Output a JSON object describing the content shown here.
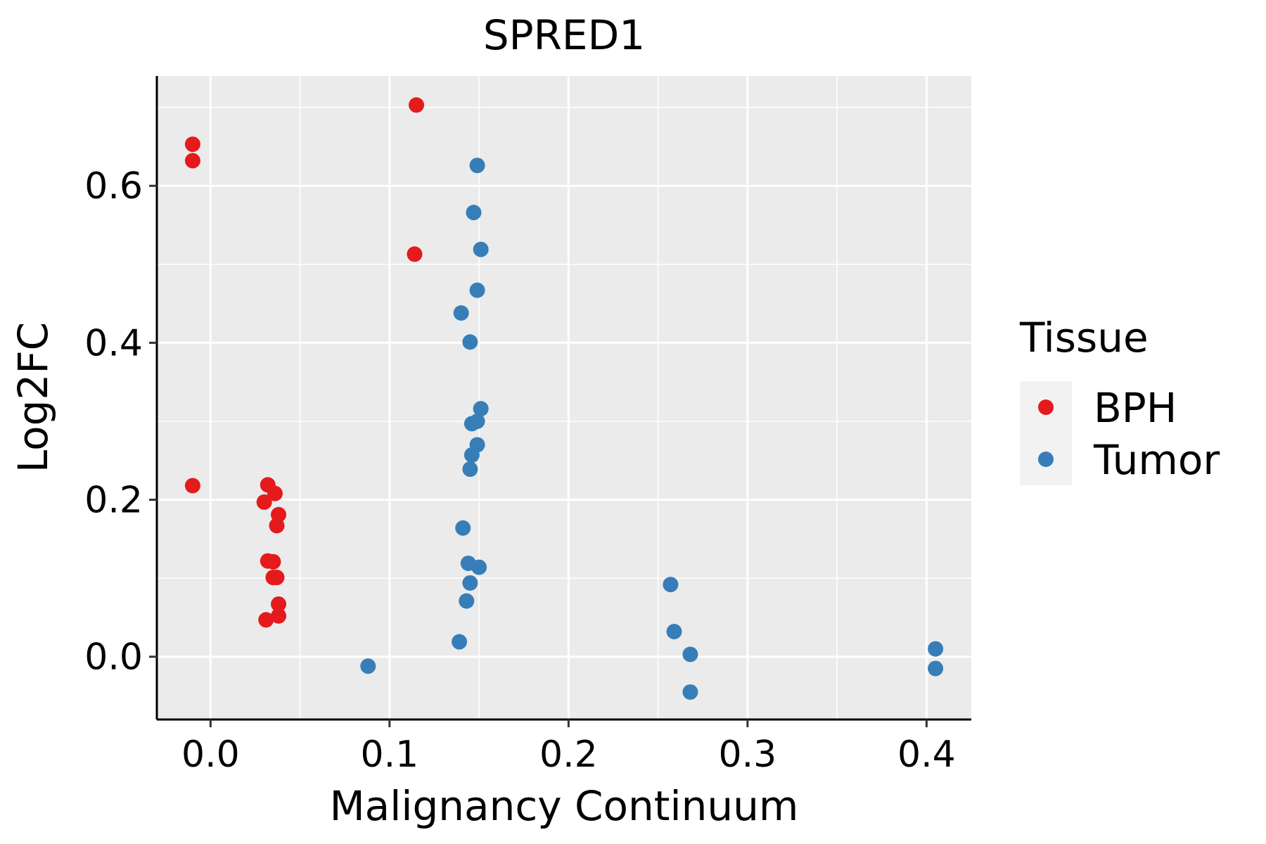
{
  "chart_data": {
    "type": "scatter",
    "title": "SPRED1",
    "xlabel": "Malignancy Continuum",
    "ylabel": "Log2FC",
    "xlim": [
      -0.03,
      0.425
    ],
    "ylim": [
      -0.08,
      0.74
    ],
    "x_ticks": [
      0.0,
      0.1,
      0.2,
      0.3,
      0.4
    ],
    "x_tick_labels": [
      "0.0",
      "0.1",
      "0.2",
      "0.3",
      "0.4"
    ],
    "y_ticks": [
      0.0,
      0.2,
      0.4,
      0.6
    ],
    "y_tick_labels": [
      "0.0",
      "0.2",
      "0.4",
      "0.6"
    ],
    "grid": true,
    "legend": {
      "title": "Tissue",
      "position": "right",
      "entries": [
        {
          "label": "BPH",
          "color": "#E41A1C"
        },
        {
          "label": "Tumor",
          "color": "#377EB8"
        }
      ]
    },
    "series": [
      {
        "name": "BPH",
        "color": "#E41A1C",
        "points": [
          {
            "x": -0.01,
            "y": 0.653
          },
          {
            "x": -0.01,
            "y": 0.632
          },
          {
            "x": -0.01,
            "y": 0.218
          },
          {
            "x": 0.115,
            "y": 0.703
          },
          {
            "x": 0.114,
            "y": 0.513
          },
          {
            "x": 0.032,
            "y": 0.219
          },
          {
            "x": 0.036,
            "y": 0.208
          },
          {
            "x": 0.03,
            "y": 0.197
          },
          {
            "x": 0.038,
            "y": 0.181
          },
          {
            "x": 0.037,
            "y": 0.167
          },
          {
            "x": 0.032,
            "y": 0.122
          },
          {
            "x": 0.035,
            "y": 0.121
          },
          {
            "x": 0.035,
            "y": 0.101
          },
          {
            "x": 0.037,
            "y": 0.101
          },
          {
            "x": 0.038,
            "y": 0.067
          },
          {
            "x": 0.038,
            "y": 0.052
          },
          {
            "x": 0.031,
            "y": 0.047
          }
        ]
      },
      {
        "name": "Tumor",
        "color": "#377EB8",
        "points": [
          {
            "x": 0.149,
            "y": 0.626
          },
          {
            "x": 0.147,
            "y": 0.566
          },
          {
            "x": 0.151,
            "y": 0.519
          },
          {
            "x": 0.149,
            "y": 0.467
          },
          {
            "x": 0.14,
            "y": 0.438
          },
          {
            "x": 0.145,
            "y": 0.401
          },
          {
            "x": 0.151,
            "y": 0.316
          },
          {
            "x": 0.149,
            "y": 0.3
          },
          {
            "x": 0.146,
            "y": 0.297
          },
          {
            "x": 0.149,
            "y": 0.27
          },
          {
            "x": 0.146,
            "y": 0.257
          },
          {
            "x": 0.145,
            "y": 0.239
          },
          {
            "x": 0.141,
            "y": 0.164
          },
          {
            "x": 0.144,
            "y": 0.119
          },
          {
            "x": 0.15,
            "y": 0.114
          },
          {
            "x": 0.145,
            "y": 0.094
          },
          {
            "x": 0.143,
            "y": 0.071
          },
          {
            "x": 0.139,
            "y": 0.019
          },
          {
            "x": 0.088,
            "y": -0.012
          },
          {
            "x": 0.257,
            "y": 0.092
          },
          {
            "x": 0.259,
            "y": 0.032
          },
          {
            "x": 0.268,
            "y": 0.003
          },
          {
            "x": 0.268,
            "y": -0.045
          },
          {
            "x": 0.405,
            "y": 0.01
          },
          {
            "x": 0.405,
            "y": -0.015
          }
        ]
      }
    ]
  }
}
